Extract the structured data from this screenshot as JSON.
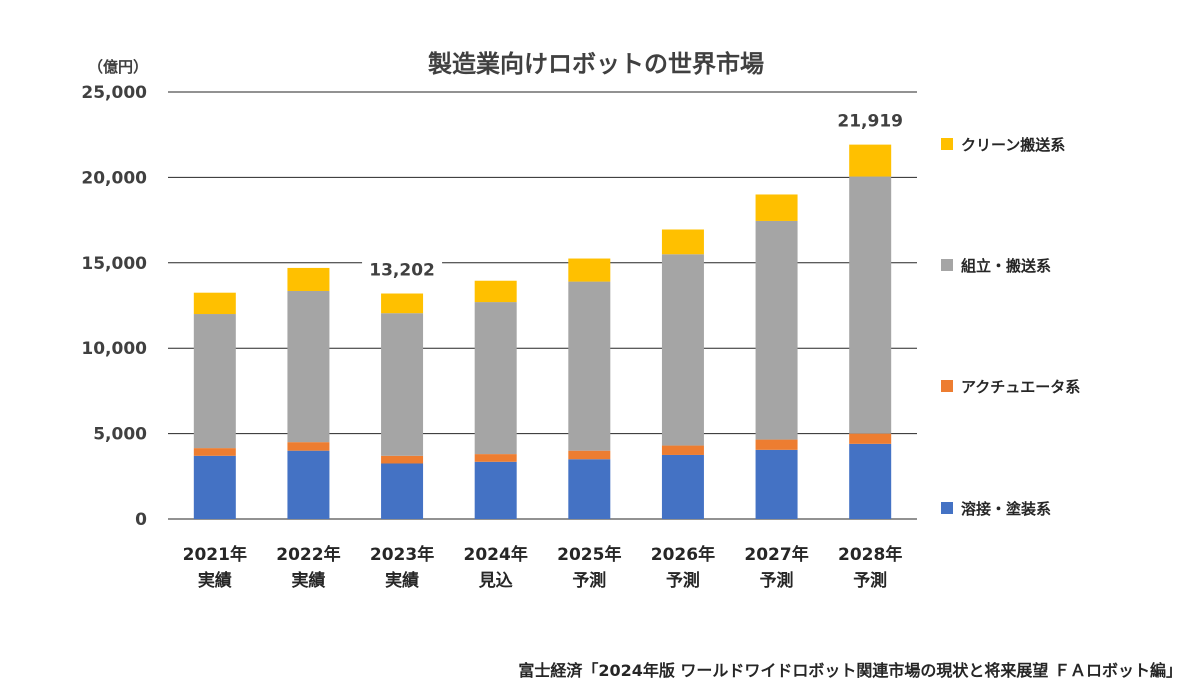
{
  "chart_data": {
    "type": "bar",
    "stacked": true,
    "title": "製造業向けロボットの世界市場",
    "unit_label": "（億円）",
    "ylim": [
      0,
      25000
    ],
    "yticks": [
      "0",
      "5,000",
      "10,000",
      "15,000",
      "20,000",
      "25,000"
    ],
    "ytick_values": [
      0,
      5000,
      10000,
      15000,
      20000,
      25000
    ],
    "grid": true,
    "categories": [
      [
        "2021年",
        "実績"
      ],
      [
        "2022年",
        "実績"
      ],
      [
        "2023年",
        "実績"
      ],
      [
        "2024年",
        "見込"
      ],
      [
        "2025年",
        "予測"
      ],
      [
        "2026年",
        "予測"
      ],
      [
        "2027年",
        "予測"
      ],
      [
        "2028年",
        "予測"
      ]
    ],
    "series": [
      {
        "name": "溶接・塗装系",
        "color": "#4472C4",
        "values": [
          3700,
          4000,
          3250,
          3350,
          3500,
          3750,
          4050,
          4400
        ]
      },
      {
        "name": "アクチュエータ系",
        "color": "#ED7D31",
        "values": [
          450,
          500,
          450,
          450,
          500,
          550,
          600,
          600
        ]
      },
      {
        "name": "組立・搬送系",
        "color": "#A5A5A5",
        "values": [
          7850,
          8850,
          8350,
          8900,
          9900,
          11200,
          12800,
          15050
        ]
      },
      {
        "name": "クリーン搬送系",
        "color": "#FFC000",
        "values": [
          1250,
          1350,
          1152,
          1250,
          1350,
          1450,
          1550,
          1869
        ]
      }
    ],
    "data_labels": [
      {
        "category_index": 2,
        "text": "13,202"
      },
      {
        "category_index": 7,
        "text": "21,919"
      }
    ],
    "legend_position": "right",
    "legend_order": [
      "クリーン搬送系",
      "組立・搬送系",
      "アクチュエータ系",
      "溶接・塗装系"
    ]
  },
  "source": "富士経済「2024年版 ワールドワイドロボット関連市場の現状と将来展望 ＦＡロボット編」"
}
